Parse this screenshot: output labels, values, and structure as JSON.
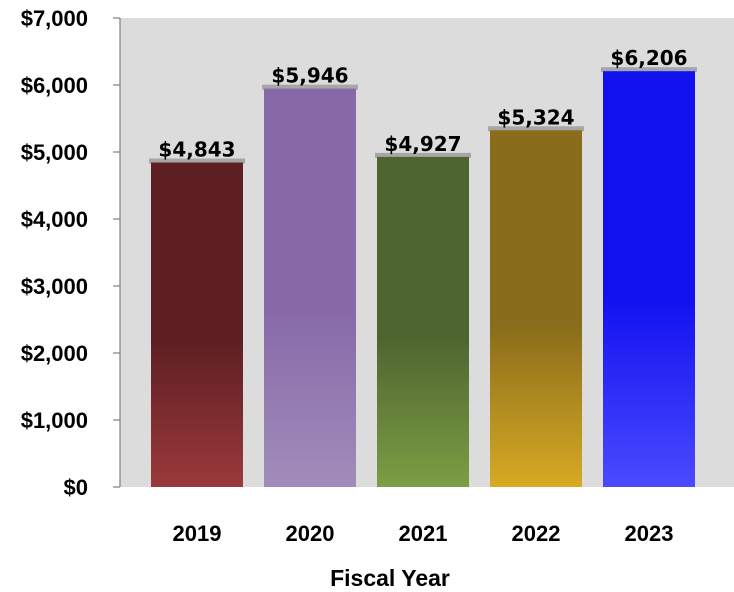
{
  "chart_data": {
    "type": "bar",
    "title": "",
    "xlabel": "Fiscal Year",
    "ylabel": "",
    "categories": [
      "2019",
      "2020",
      "2021",
      "2022",
      "2023"
    ],
    "values": [
      4843,
      5946,
      4927,
      5324,
      6206
    ],
    "data_labels": [
      "$4,843",
      "$5,946",
      "$4,927",
      "$5,324",
      "$6,206"
    ],
    "ylim": [
      0,
      7000
    ],
    "yticks": [
      0,
      1000,
      2000,
      3000,
      4000,
      5000,
      6000,
      7000
    ],
    "ytick_labels": [
      "$0",
      "$1,000",
      "$2,000",
      "$3,000",
      "$4,000",
      "$5,000",
      "$6,000",
      "$7,000"
    ],
    "grid": false,
    "legend": "none",
    "colors": {
      "plot_background": "#dcdcdc",
      "bars": [
        {
          "top": "#5e1f22",
          "bottom": "#9a393b"
        },
        {
          "top": "#8769a8",
          "bottom": "#a08cb9"
        },
        {
          "top": "#4f6530",
          "bottom": "#7c9e44"
        },
        {
          "top": "#8a6d1c",
          "bottom": "#d7aa23"
        },
        {
          "top": "#1212f0",
          "bottom": "#4a4aff"
        }
      ]
    }
  }
}
